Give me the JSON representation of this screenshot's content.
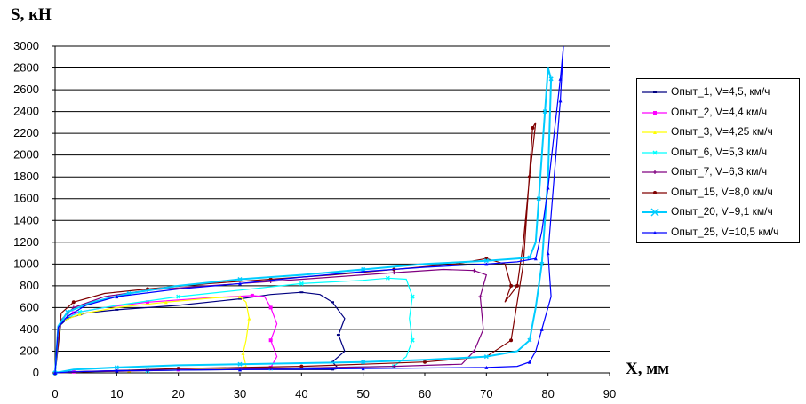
{
  "chart_data": {
    "type": "line",
    "ylabel": "S, кН",
    "xlabel": "X, мм",
    "xlim": [
      0,
      90
    ],
    "ylim": [
      0,
      3000
    ],
    "xticks": [
      "0",
      "10",
      "20",
      "30",
      "40",
      "50",
      "60",
      "70",
      "80",
      "90"
    ],
    "yticks": [
      "0",
      "200",
      "400",
      "600",
      "800",
      "1000",
      "1200",
      "1400",
      "1600",
      "1800",
      "2000",
      "2200",
      "2400",
      "2600",
      "2800",
      "3000"
    ],
    "grid": "horizontal",
    "legend_position": "right",
    "series": [
      {
        "name": "Опыт_1, V=4,5, км/ч",
        "color": "#000080",
        "marker": "dash",
        "x": [
          0,
          0.5,
          2,
          5,
          10,
          20,
          30,
          35,
          40,
          43,
          45,
          47,
          46,
          47,
          45,
          46,
          45,
          40,
          30,
          20,
          10,
          5,
          2,
          1,
          0
        ],
        "y": [
          0,
          420,
          500,
          550,
          580,
          620,
          680,
          720,
          740,
          720,
          650,
          500,
          350,
          200,
          100,
          40,
          30,
          30,
          30,
          25,
          20,
          15,
          10,
          5,
          0
        ]
      },
      {
        "name": "Опыт_2, V=4,4 км/ч",
        "color": "#ff00ff",
        "marker": "square",
        "x": [
          0,
          1,
          3,
          8,
          15,
          25,
          32,
          34,
          35,
          36,
          35,
          36,
          35,
          30,
          20,
          10,
          3,
          0
        ],
        "y": [
          0,
          480,
          550,
          600,
          650,
          690,
          710,
          700,
          600,
          450,
          300,
          150,
          50,
          40,
          30,
          20,
          10,
          0
        ]
      },
      {
        "name": "Опыт_3, V=4,25 км/ч",
        "color": "#ffff00",
        "marker": "triangle",
        "x": [
          0,
          1,
          4,
          10,
          18,
          26,
          30,
          31,
          31.5,
          31,
          30.5,
          31,
          30,
          22,
          12,
          4,
          0
        ],
        "y": [
          0,
          470,
          540,
          600,
          650,
          690,
          700,
          650,
          500,
          300,
          180,
          60,
          40,
          30,
          20,
          10,
          0
        ]
      },
      {
        "name": "Опыт_6, V=5,3 км/ч",
        "color": "#00ffff",
        "marker": "x",
        "x": [
          0,
          1,
          4,
          10,
          20,
          30,
          40,
          50,
          54,
          57,
          58,
          57.5,
          58,
          57,
          55,
          45,
          35,
          25,
          15,
          5,
          0
        ],
        "y": [
          0,
          480,
          560,
          620,
          700,
          760,
          820,
          850,
          870,
          860,
          700,
          500,
          300,
          150,
          60,
          50,
          40,
          30,
          20,
          10,
          0
        ]
      },
      {
        "name": "Опыт_7, V=6,3 км/ч",
        "color": "#800080",
        "marker": "star",
        "x": [
          0,
          1,
          3,
          8,
          15,
          25,
          35,
          45,
          55,
          63,
          68,
          70,
          69,
          69.5,
          68,
          66,
          55,
          45,
          35,
          25,
          15,
          5,
          0
        ],
        "y": [
          0,
          490,
          600,
          700,
          760,
          800,
          840,
          880,
          920,
          950,
          940,
          900,
          700,
          400,
          200,
          80,
          60,
          50,
          40,
          30,
          20,
          10,
          0
        ]
      },
      {
        "name": "Опыт_15, V=8,0 км/ч",
        "color": "#800000",
        "marker": "circle",
        "x": [
          0,
          1,
          3,
          8,
          15,
          25,
          35,
          45,
          55,
          65,
          70,
          73,
          74,
          73,
          75,
          76,
          77,
          78,
          77.5,
          76,
          74,
          70,
          60,
          50,
          40,
          30,
          20,
          10,
          0
        ],
        "y": [
          0,
          550,
          650,
          730,
          770,
          820,
          860,
          900,
          950,
          1000,
          1050,
          1000,
          800,
          650,
          800,
          1200,
          1800,
          2300,
          2250,
          1000,
          300,
          150,
          100,
          80,
          60,
          50,
          40,
          20,
          0
        ]
      },
      {
        "name": "Опыт_20, V=9,1 км/ч",
        "color": "#00ccff",
        "marker": "x",
        "x": [
          0,
          0.5,
          2,
          6,
          12,
          20,
          30,
          40,
          50,
          60,
          70,
          75,
          77,
          78,
          78.5,
          79,
          79.5,
          80,
          80.5,
          80,
          79,
          78,
          77,
          75,
          70,
          60,
          50,
          40,
          30,
          20,
          10,
          3,
          0
        ],
        "y": [
          0,
          430,
          560,
          650,
          730,
          800,
          860,
          900,
          950,
          1000,
          1030,
          1050,
          1060,
          1200,
          1600,
          2000,
          2400,
          2800,
          2700,
          1800,
          1000,
          600,
          300,
          200,
          150,
          120,
          100,
          90,
          80,
          70,
          50,
          30,
          0
        ]
      },
      {
        "name": "Опыт_25, V=10,5 км/ч",
        "color": "#0000ff",
        "marker": "triangle",
        "x": [
          0,
          0.5,
          2,
          5,
          10,
          20,
          30,
          40,
          50,
          60,
          70,
          75,
          78,
          79,
          80,
          81,
          82,
          82.5,
          82,
          81,
          80,
          80.5,
          79,
          78,
          77,
          75,
          70,
          60,
          50,
          40,
          30,
          20,
          10,
          3,
          0
        ],
        "y": [
          0,
          420,
          520,
          620,
          700,
          770,
          820,
          880,
          930,
          970,
          1000,
          1020,
          1050,
          1300,
          1700,
          2200,
          2700,
          3000,
          2500,
          1800,
          1100,
          700,
          400,
          200,
          100,
          60,
          50,
          45,
          40,
          35,
          30,
          25,
          20,
          10,
          0
        ]
      }
    ]
  }
}
